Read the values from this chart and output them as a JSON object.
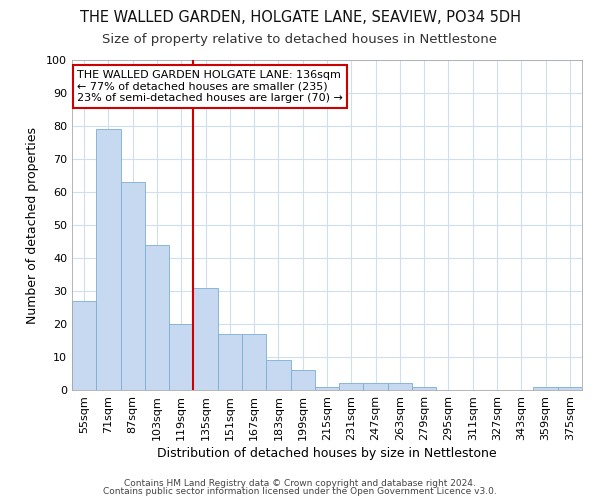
{
  "title1": "THE WALLED GARDEN, HOLGATE LANE, SEAVIEW, PO34 5DH",
  "title2": "Size of property relative to detached houses in Nettlestone",
  "xlabel": "Distribution of detached houses by size in Nettlestone",
  "ylabel": "Number of detached properties",
  "categories": [
    "55sqm",
    "71sqm",
    "87sqm",
    "103sqm",
    "119sqm",
    "135sqm",
    "151sqm",
    "167sqm",
    "183sqm",
    "199sqm",
    "215sqm",
    "231sqm",
    "247sqm",
    "263sqm",
    "279sqm",
    "295sqm",
    "311sqm",
    "327sqm",
    "343sqm",
    "359sqm",
    "375sqm"
  ],
  "values": [
    27,
    79,
    63,
    44,
    20,
    31,
    17,
    17,
    9,
    6,
    1,
    2,
    2,
    2,
    1,
    0,
    0,
    0,
    0,
    1,
    1
  ],
  "bar_color": "#c6d9f1",
  "bar_edge_color": "#7bafd4",
  "vline_x_index": 5,
  "vline_color": "#cc0000",
  "annotation_line1": "THE WALLED GARDEN HOLGATE LANE: 136sqm",
  "annotation_line2": "← 77% of detached houses are smaller (235)",
  "annotation_line3": "23% of semi-detached houses are larger (70) →",
  "annotation_box_color": "#ffffff",
  "annotation_box_edge": "#cc0000",
  "ylim": [
    0,
    100
  ],
  "yticks": [
    0,
    10,
    20,
    30,
    40,
    50,
    60,
    70,
    80,
    90,
    100
  ],
  "footer1": "Contains HM Land Registry data © Crown copyright and database right 2024.",
  "footer2": "Contains public sector information licensed under the Open Government Licence v3.0.",
  "bg_color": "#ffffff",
  "grid_color": "#d0dff0",
  "title_fontsize": 10.5,
  "subtitle_fontsize": 9.5,
  "axis_label_fontsize": 9,
  "tick_fontsize": 8,
  "footer_fontsize": 6.5,
  "annotation_fontsize": 8
}
